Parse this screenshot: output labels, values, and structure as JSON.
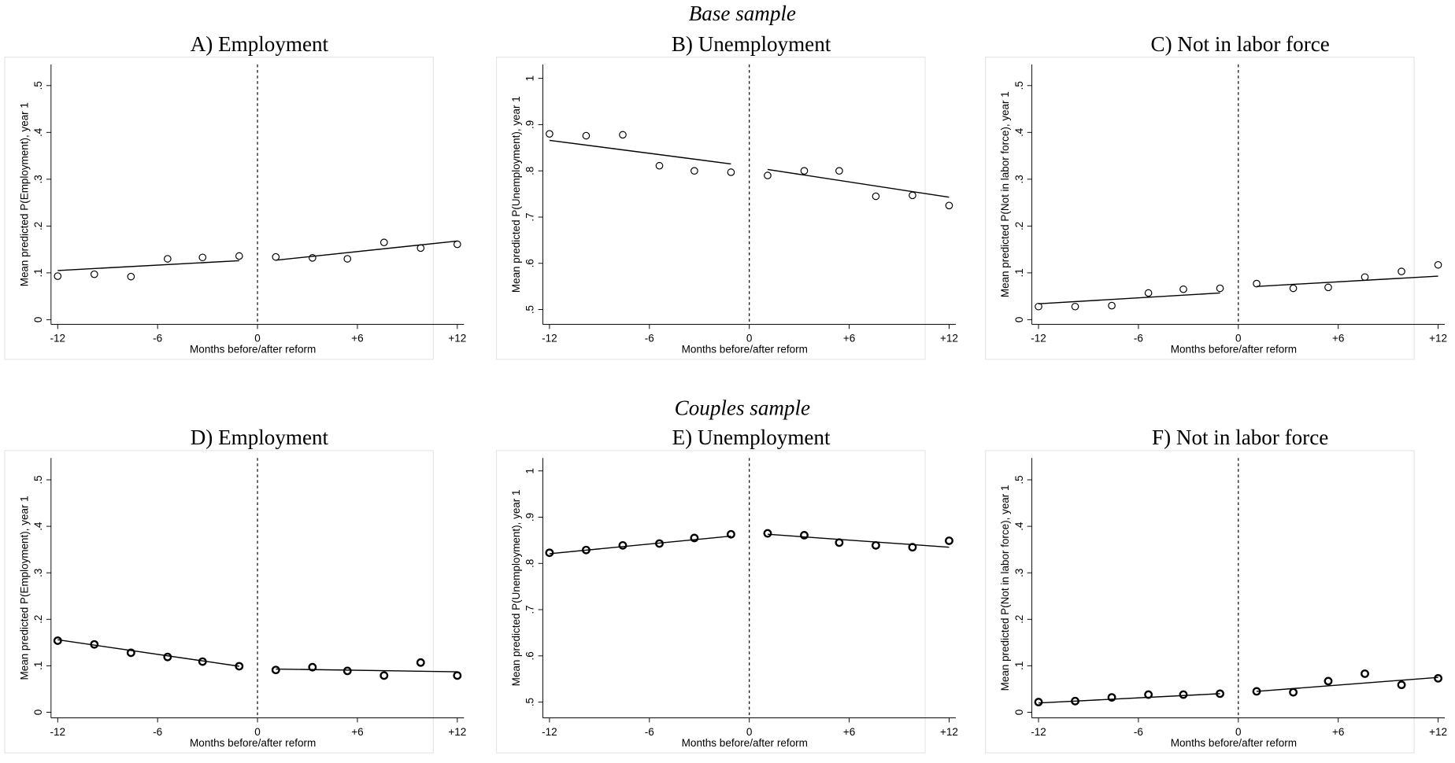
{
  "section_titles": [
    "Base sample",
    "Couples sample"
  ],
  "chart_data": [
    {
      "type": "scatter",
      "title": "A) Employment",
      "xlabel": "Months before/after reform",
      "ylabel": "Mean predicted P(Employment), year 1",
      "x": [
        -12,
        -9.8,
        -7.6,
        -5.4,
        -3.3,
        -1.1,
        1.1,
        3.3,
        5.4,
        7.6,
        9.8,
        12
      ],
      "xlim": [
        -12.4,
        12.4
      ],
      "xticks": [
        -12,
        -6,
        0,
        {
          "value": 6,
          "label": "+6"
        },
        {
          "value": 12,
          "label": "+12"
        }
      ],
      "ylim": [
        -0.01,
        0.545
      ],
      "yticks": [
        0,
        {
          "value": 0.1,
          "label": ".1"
        },
        {
          "value": 0.2,
          "label": ".2"
        },
        {
          "value": 0.3,
          "label": ".3"
        },
        {
          "value": 0.4,
          "label": ".4"
        },
        {
          "value": 0.5,
          "label": ".5"
        }
      ],
      "vline": 0,
      "series": [
        {
          "color": "#000000",
          "values": [
            0.093,
            0.097,
            0.092,
            0.13,
            0.133,
            0.136,
            0.134,
            0.132,
            0.13,
            0.165,
            0.153,
            0.161
          ]
        },
        {
          "type": "line",
          "color": "#000000",
          "x": [
            -12,
            -1.1,
            null,
            1.1,
            12
          ],
          "values": [
            0.105,
            0.126,
            null,
            0.127,
            0.168
          ]
        }
      ]
    },
    {
      "type": "scatter",
      "title": "B) Unemployment",
      "xlabel": "Months before/after reform",
      "ylabel": "Mean predicted P(Unemployment), year 1",
      "x": [
        -12,
        -9.8,
        -7.6,
        -5.4,
        -3.3,
        -1.1,
        1.1,
        3.3,
        5.4,
        7.6,
        9.8,
        12
      ],
      "xlim": [
        -12.4,
        12.4
      ],
      "xticks": [
        -12,
        -6,
        0,
        {
          "value": 6,
          "label": "+6"
        },
        {
          "value": 12,
          "label": "+12"
        }
      ],
      "ylim": [
        0.468,
        1.03
      ],
      "yticks": [
        {
          "value": 0.5,
          "label": ".5"
        },
        {
          "value": 0.6,
          "label": ".6"
        },
        {
          "value": 0.7,
          "label": ".7"
        },
        {
          "value": 0.8,
          "label": ".8"
        },
        {
          "value": 0.9,
          "label": ".9"
        },
        1
      ],
      "vline": 0,
      "series": [
        {
          "color": "#000000",
          "values": [
            0.88,
            0.876,
            0.878,
            0.811,
            0.8,
            0.797,
            0.79,
            0.8,
            0.8,
            0.745,
            0.747,
            0.725
          ]
        },
        {
          "type": "line",
          "color": "#000000",
          "x": [
            -12,
            -1.1,
            null,
            1.1,
            12
          ],
          "values": [
            0.866,
            0.815,
            null,
            0.803,
            0.743
          ]
        }
      ]
    },
    {
      "type": "scatter",
      "title": "C) Not in labor force",
      "xlabel": "Months before/after reform",
      "ylabel": "Mean predicted P(Not in labor force), year 1",
      "x": [
        -12,
        -9.8,
        -7.6,
        -5.4,
        -3.3,
        -1.1,
        1.1,
        3.3,
        5.4,
        7.6,
        9.8,
        12
      ],
      "xlim": [
        -12.4,
        12.4
      ],
      "xticks": [
        -12,
        -6,
        0,
        {
          "value": 6,
          "label": "+6"
        },
        {
          "value": 12,
          "label": "+12"
        }
      ],
      "ylim": [
        -0.01,
        0.545
      ],
      "yticks": [
        0,
        {
          "value": 0.1,
          "label": ".1"
        },
        {
          "value": 0.2,
          "label": ".2"
        },
        {
          "value": 0.3,
          "label": ".3"
        },
        {
          "value": 0.4,
          "label": ".4"
        },
        {
          "value": 0.5,
          "label": ".5"
        }
      ],
      "vline": 0,
      "series": [
        {
          "color": "#000000",
          "values": [
            0.028,
            0.028,
            0.03,
            0.057,
            0.065,
            0.067,
            0.077,
            0.067,
            0.069,
            0.091,
            0.103,
            0.117
          ]
        },
        {
          "type": "line",
          "color": "#000000",
          "x": [
            -12,
            -1.1,
            null,
            1.1,
            12
          ],
          "values": [
            0.034,
            0.057,
            null,
            0.071,
            0.093
          ]
        }
      ]
    },
    {
      "type": "scatter",
      "title": "D) Employment",
      "xlabel": "Months before/after reform",
      "ylabel": "Mean predicted P(Employment), year 1",
      "x": [
        -12,
        -9.8,
        -7.6,
        -5.4,
        -3.3,
        -1.1,
        1.1,
        3.3,
        5.4,
        7.6,
        9.8,
        12
      ],
      "xlim": [
        -12.4,
        12.4
      ],
      "xticks": [
        -12,
        -6,
        0,
        {
          "value": 6,
          "label": "+6"
        },
        {
          "value": 12,
          "label": "+12"
        }
      ],
      "ylim": [
        -0.012,
        0.547
      ],
      "yticks": [
        0,
        {
          "value": 0.1,
          "label": ".1"
        },
        {
          "value": 0.2,
          "label": ".2"
        },
        {
          "value": 0.3,
          "label": ".3"
        },
        {
          "value": 0.4,
          "label": ".4"
        },
        {
          "value": 0.5,
          "label": ".5"
        }
      ],
      "vline": 0,
      "series": [
        {
          "color": "#000000",
          "values": [
            0.154,
            0.146,
            0.128,
            0.119,
            0.109,
            0.099,
            0.091,
            0.097,
            0.089,
            0.079,
            0.107,
            0.079
          ]
        },
        {
          "type": "line",
          "color": "#000000",
          "x": [
            -12,
            -1.1,
            null,
            1.1,
            12
          ],
          "values": [
            0.156,
            0.099,
            null,
            0.093,
            0.087
          ]
        }
      ]
    },
    {
      "type": "scatter",
      "title": "E) Unemployment",
      "xlabel": "Months before/after reform",
      "ylabel": "Mean predicted P(Unemployment), year 1",
      "x": [
        -12,
        -9.8,
        -7.6,
        -5.4,
        -3.3,
        -1.1,
        1.1,
        3.3,
        5.4,
        7.6,
        9.8,
        12
      ],
      "xlim": [
        -12.4,
        12.4
      ],
      "xticks": [
        -12,
        -6,
        0,
        {
          "value": 6,
          "label": "+6"
        },
        {
          "value": 12,
          "label": "+12"
        }
      ],
      "ylim": [
        0.466,
        1.028
      ],
      "yticks": [
        {
          "value": 0.5,
          "label": ".5"
        },
        {
          "value": 0.6,
          "label": ".6"
        },
        {
          "value": 0.7,
          "label": ".7"
        },
        {
          "value": 0.8,
          "label": ".8"
        },
        {
          "value": 0.9,
          "label": ".9"
        },
        1
      ],
      "vline": 0,
      "series": [
        {
          "color": "#000000",
          "values": [
            0.823,
            0.829,
            0.839,
            0.843,
            0.855,
            0.863,
            0.865,
            0.861,
            0.845,
            0.839,
            0.835,
            0.849
          ]
        },
        {
          "type": "line",
          "color": "#000000",
          "x": [
            -12,
            -1.1,
            null,
            1.1,
            12
          ],
          "values": [
            0.821,
            0.859,
            null,
            0.863,
            0.835
          ]
        }
      ]
    },
    {
      "type": "scatter",
      "title": "F) Not in labor force",
      "xlabel": "Months before/after reform",
      "ylabel": "Mean predicted P(Not in labor force), year 1",
      "x": [
        -12,
        -9.8,
        -7.6,
        -5.4,
        -3.3,
        -1.1,
        1.1,
        3.3,
        5.4,
        7.6,
        9.8,
        12
      ],
      "xlim": [
        -12.4,
        12.4
      ],
      "xticks": [
        -12,
        -6,
        0,
        {
          "value": 6,
          "label": "+6"
        },
        {
          "value": 12,
          "label": "+12"
        }
      ],
      "ylim": [
        -0.012,
        0.547
      ],
      "yticks": [
        0,
        {
          "value": 0.1,
          "label": ".1"
        },
        {
          "value": 0.2,
          "label": ".2"
        },
        {
          "value": 0.3,
          "label": ".3"
        },
        {
          "value": 0.4,
          "label": ".4"
        },
        {
          "value": 0.5,
          "label": ".5"
        }
      ],
      "vline": 0,
      "series": [
        {
          "color": "#000000",
          "values": [
            0.022,
            0.024,
            0.032,
            0.038,
            0.038,
            0.04,
            0.045,
            0.043,
            0.067,
            0.083,
            0.059,
            0.073
          ]
        },
        {
          "type": "line",
          "color": "#000000",
          "x": [
            -12,
            -1.1,
            null,
            1.1,
            12
          ],
          "values": [
            0.02,
            0.04,
            null,
            0.045,
            0.075
          ]
        }
      ]
    }
  ]
}
